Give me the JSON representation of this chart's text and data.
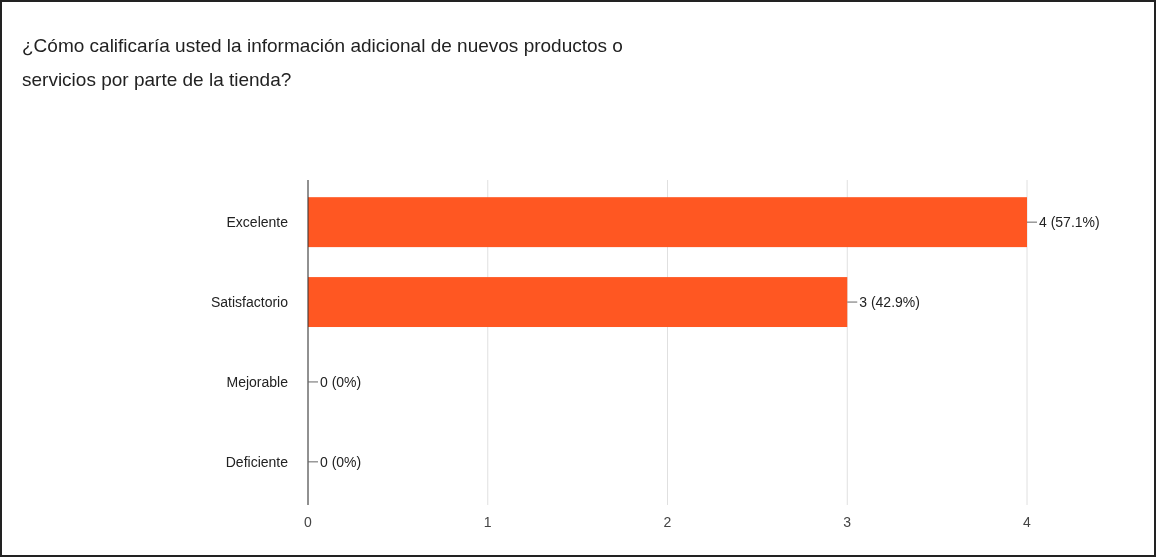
{
  "chart_data": {
    "type": "bar",
    "orientation": "horizontal",
    "title": "¿Cómo calificaría usted la información adicional de nuevos productos o servicios por parte de la tienda?",
    "categories": [
      "Excelente",
      "Satisfactorio",
      "Mejorable",
      "Deficiente"
    ],
    "values": [
      4,
      3,
      0,
      0
    ],
    "value_labels": [
      "4 (57.1%)",
      "3 (42.9%)",
      "0 (0%)",
      "0 (0%)"
    ],
    "color": "#ff5722",
    "xlim": [
      0,
      4
    ],
    "xticks": [
      0,
      1,
      2,
      3,
      4
    ],
    "grid": "x"
  }
}
